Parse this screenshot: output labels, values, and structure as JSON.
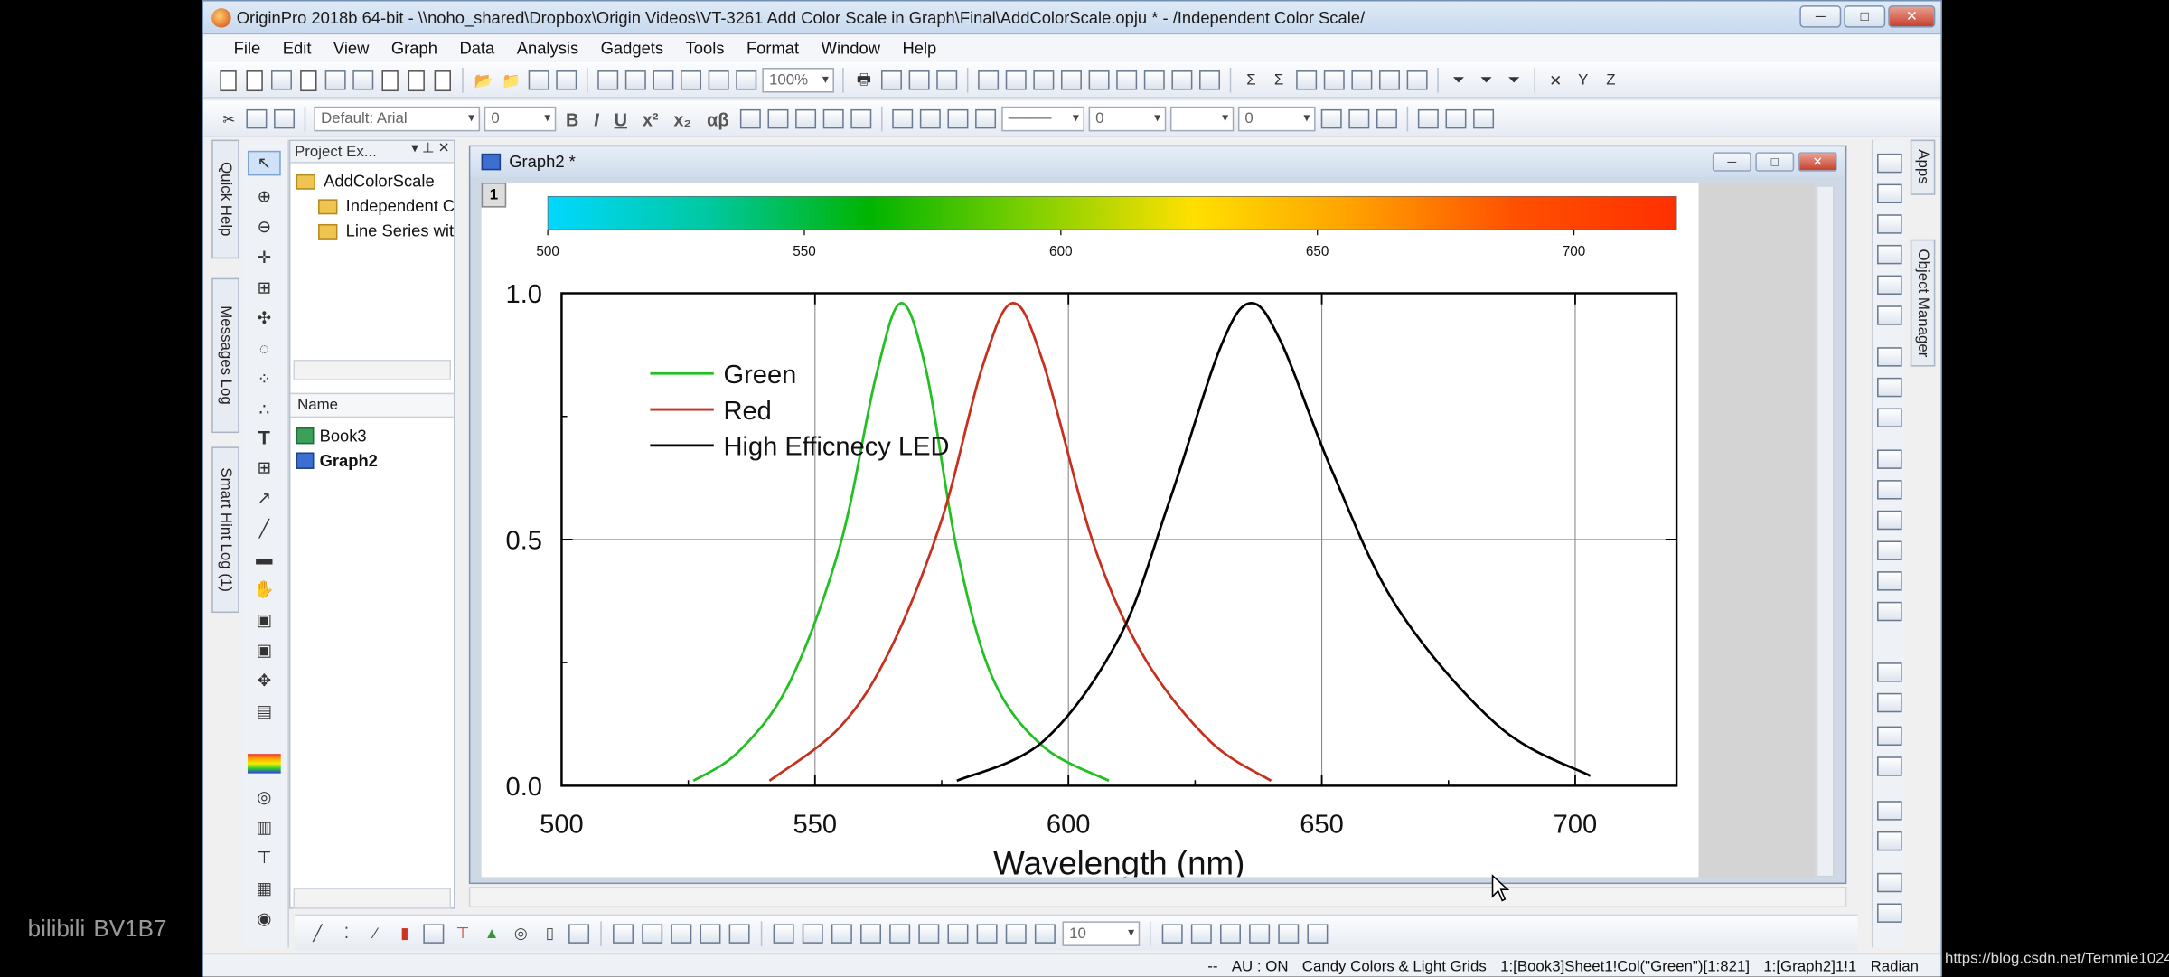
{
  "window": {
    "title": "OriginPro 2018b 64-bit - \\\\noho_shared\\Dropbox\\Origin Videos\\VT-3261 Add Color Scale in Graph\\Final\\AddColorScale.opju * - /Independent Color Scale/",
    "buttons": {
      "minimize": "─",
      "restore": "□",
      "close": "✕"
    }
  },
  "menu": [
    "File",
    "Edit",
    "View",
    "Graph",
    "Data",
    "Analysis",
    "Gadgets",
    "Tools",
    "Format",
    "Window",
    "Help"
  ],
  "toolbar": {
    "zoom": "100%",
    "font": "Default: Arial",
    "font_size": "0",
    "line_width": "0",
    "pattern_size": "0",
    "bold": "B",
    "italic": "I",
    "underline": "U",
    "superscript": "x²",
    "subscript": "x₂",
    "greek": "αβ"
  },
  "side_tabs": {
    "quick_help": "Quick Help",
    "messages_log": "Messages Log",
    "smart_hint_log": "Smart Hint Log (1)"
  },
  "right_tabs": {
    "apps": "Apps",
    "object_manager": "Object Manager"
  },
  "project_explorer": {
    "title": "Project Ex...",
    "folders": [
      "AddColorScale",
      "Independent C",
      "Line Series wit"
    ],
    "list_header": "Name",
    "items": [
      "Book3",
      "Graph2"
    ]
  },
  "graph_window": {
    "title": "Graph2 *",
    "layer": "1"
  },
  "chart_data": {
    "type": "line",
    "xlabel": "Wavelength (nm)",
    "ylabel": "",
    "xlim": [
      500,
      720
    ],
    "ylim": [
      0,
      1
    ],
    "xticks": [
      "500",
      "550",
      "600",
      "650",
      "700"
    ],
    "yticks": [
      "0.0",
      "0.5",
      "1.0"
    ],
    "grid": true,
    "legend_position": "top-left",
    "color_scale": {
      "ticks": [
        "500",
        "550",
        "600",
        "650",
        "700"
      ],
      "range": [
        500,
        720
      ],
      "colors": [
        "#00d8ff",
        "#00c8a0",
        "#00b400",
        "#80d000",
        "#ffe000",
        "#ffa000",
        "#ff5000",
        "#ff3000"
      ]
    },
    "series": [
      {
        "name": "Green",
        "color": "#22c022",
        "x": [
          526,
          535,
          545,
          555,
          562,
          567,
          572,
          578,
          585,
          595,
          608
        ],
        "y": [
          0.01,
          0.07,
          0.21,
          0.49,
          0.83,
          0.98,
          0.84,
          0.48,
          0.22,
          0.08,
          0.01
        ]
      },
      {
        "name": "Red",
        "color": "#c8301e",
        "x": [
          541,
          555,
          565,
          575,
          583,
          589,
          595,
          605,
          615,
          628,
          640
        ],
        "y": [
          0.01,
          0.12,
          0.28,
          0.54,
          0.85,
          0.98,
          0.86,
          0.49,
          0.26,
          0.09,
          0.01
        ]
      },
      {
        "name": "High Efficnecy LED",
        "color": "#000000",
        "x": [
          578,
          595,
          610,
          620,
          630,
          636,
          642,
          652,
          665,
          685,
          703
        ],
        "y": [
          0.01,
          0.09,
          0.3,
          0.58,
          0.89,
          0.98,
          0.9,
          0.64,
          0.36,
          0.12,
          0.02
        ]
      }
    ]
  },
  "bottom_toolbar": {
    "size": "10"
  },
  "status_bar": {
    "dash": "--",
    "au": "AU : ON",
    "theme": "Candy Colors & Light Grids",
    "column": "1:[Book3]Sheet1!Col(\"Green\")[1:821]",
    "layer": "1:[Graph2]1!1",
    "unit": "Radian"
  },
  "overlay": {
    "watermark": "bilibili",
    "video_id": "BV1B7",
    "csdn": "https://blog.csdn.net/Temmie1024"
  }
}
